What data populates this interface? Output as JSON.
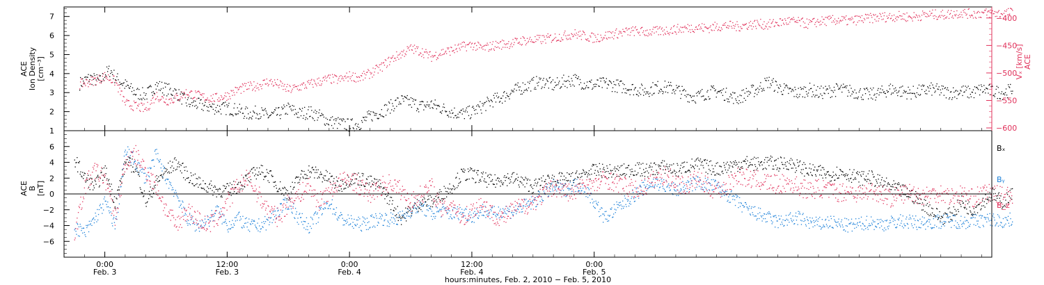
{
  "chart_data": [
    {
      "type": "scatter",
      "panel": "top",
      "ylabel_left": [
        "ACE",
        "Ion Density",
        "[cm⁻³]"
      ],
      "ylabel_right": [
        "ACE",
        "Vₓ [km/s]"
      ],
      "ylim_left": [
        1,
        7.5
      ],
      "ylim_right": [
        -605,
        -380
      ],
      "yticks_left": [
        1,
        2,
        3,
        4,
        5,
        6,
        7
      ],
      "yticks_right": [
        -600,
        -550,
        -500,
        -450,
        -400
      ],
      "colors": {
        "density": "#000000",
        "vx": "#e0305a"
      },
      "series": [
        {
          "key": "density",
          "axis": "left",
          "x": [
            -2.5,
            -1.5,
            -0.5,
            0,
            0.5,
            1,
            2,
            3,
            4,
            5,
            6,
            7,
            8,
            9,
            10,
            11,
            12,
            13,
            14,
            15,
            16,
            17,
            18,
            19,
            20,
            21,
            22,
            23,
            24,
            25,
            26,
            27,
            28,
            29,
            30,
            31,
            32,
            33,
            34,
            35,
            36,
            37,
            38,
            39,
            40,
            41,
            42,
            43,
            44,
            45,
            46,
            47,
            48,
            49,
            50,
            51,
            52,
            53,
            54,
            55,
            56,
            57,
            58,
            59,
            60,
            61,
            62,
            63,
            64,
            65,
            66,
            67,
            68,
            69,
            70,
            71,
            72,
            73,
            74,
            75,
            76,
            77,
            78,
            79,
            80,
            81,
            82,
            83,
            84,
            85,
            86,
            87,
            88,
            89
          ],
          "y": [
            3.5,
            3.8,
            3.6,
            4.0,
            4.2,
            3.8,
            3.4,
            3.0,
            2.9,
            3.4,
            3.2,
            3.0,
            2.5,
            2.4,
            2.3,
            2.2,
            2.2,
            2.1,
            1.9,
            2.0,
            1.8,
            1.9,
            2.2,
            1.9,
            2.0,
            1.8,
            1.5,
            1.4,
            1.3,
            1.4,
            1.8,
            2.0,
            2.3,
            2.6,
            2.5,
            2.3,
            2.4,
            2.2,
            2.0,
            1.9,
            2.0,
            2.3,
            2.6,
            2.8,
            3.1,
            3.3,
            3.5,
            3.6,
            3.4,
            3.6,
            3.7,
            3.5,
            3.4,
            3.5,
            3.4,
            3.3,
            3.2,
            3.1,
            3.3,
            3.3,
            3.2,
            2.9,
            2.8,
            3.0,
            3.1,
            2.9,
            2.7,
            3.0,
            3.2,
            3.6,
            3.3,
            3.1,
            3.0,
            3.2,
            3.0,
            3.1,
            3.2,
            3.1,
            3.0,
            2.9,
            3.0,
            3.2,
            3.1,
            3.0,
            3.1,
            3.2,
            3.1,
            3.0,
            3.1,
            3.0,
            3.2,
            3.1,
            3.0,
            3.2
          ]
        },
        {
          "key": "vx",
          "axis": "right",
          "x": [
            -2.5,
            -1.5,
            -0.5,
            0,
            0.5,
            1,
            2,
            3,
            4,
            5,
            6,
            7,
            8,
            9,
            10,
            11,
            12,
            13,
            14,
            15,
            16,
            17,
            18,
            19,
            20,
            21,
            22,
            23,
            24,
            25,
            26,
            27,
            28,
            29,
            30,
            31,
            32,
            33,
            34,
            35,
            36,
            37,
            38,
            39,
            40,
            41,
            42,
            43,
            44,
            45,
            46,
            47,
            48,
            49,
            50,
            51,
            52,
            53,
            54,
            55,
            56,
            57,
            58,
            59,
            60,
            61,
            62,
            63,
            64,
            65,
            66,
            67,
            68,
            69,
            70,
            71,
            72,
            73,
            74,
            75,
            76,
            77,
            78,
            79,
            80,
            81,
            82,
            83,
            84,
            85,
            86,
            87,
            88,
            89
          ],
          "y": [
            -520,
            -515,
            -510,
            -505,
            -510,
            -515,
            -555,
            -560,
            -565,
            -540,
            -550,
            -545,
            -535,
            -540,
            -545,
            -545,
            -540,
            -530,
            -525,
            -522,
            -515,
            -520,
            -530,
            -525,
            -520,
            -515,
            -510,
            -512,
            -505,
            -508,
            -500,
            -490,
            -475,
            -465,
            -455,
            -460,
            -470,
            -462,
            -458,
            -452,
            -448,
            -455,
            -450,
            -447,
            -445,
            -440,
            -440,
            -438,
            -435,
            -432,
            -428,
            -432,
            -436,
            -432,
            -428,
            -425,
            -423,
            -425,
            -424,
            -422,
            -420,
            -418,
            -416,
            -418,
            -415,
            -413,
            -415,
            -412,
            -410,
            -412,
            -408,
            -405,
            -407,
            -410,
            -406,
            -404,
            -403,
            -405,
            -402,
            -400,
            -398,
            -397,
            -396,
            -398,
            -395,
            -393,
            -394,
            -392,
            -390,
            -392,
            -391,
            -390,
            -392,
            -389
          ]
        }
      ]
    },
    {
      "type": "scatter",
      "panel": "bottom",
      "ylabel_left": [
        "ACE",
        "B",
        "[nT]"
      ],
      "ylim": [
        -8,
        8
      ],
      "yticks": [
        -6,
        -4,
        -2,
        0,
        2,
        4,
        6
      ],
      "legend": [
        {
          "label": "Bₓ",
          "color": "#000000"
        },
        {
          "label": "Bᵧ",
          "color": "#1a7fd8"
        },
        {
          "label": "B_z",
          "color": "#e0305a"
        }
      ],
      "series": [
        {
          "key": "bx",
          "x": [
            -3,
            -2,
            -1,
            0,
            1,
            2,
            3,
            4,
            5,
            6,
            7,
            8,
            9,
            10,
            11,
            12,
            13,
            14,
            15,
            16,
            17,
            18,
            19,
            20,
            21,
            22,
            23,
            24,
            25,
            26,
            27,
            28,
            29,
            30,
            31,
            32,
            33,
            34,
            35,
            36,
            37,
            38,
            39,
            40,
            41,
            42,
            43,
            44,
            45,
            46,
            47,
            48,
            49,
            50,
            51,
            52,
            53,
            54,
            55,
            56,
            57,
            58,
            59,
            60,
            61,
            62,
            63,
            64,
            65,
            66,
            67,
            68,
            69,
            70,
            71,
            72,
            73,
            74,
            75,
            76,
            77,
            78,
            79,
            80,
            81,
            82,
            83,
            84,
            85,
            86,
            87,
            88,
            89
          ],
          "y": [
            4.5,
            2.0,
            1.0,
            3.0,
            -1.0,
            4.0,
            3.5,
            -1.0,
            1.5,
            3.0,
            4.0,
            2.5,
            1.5,
            1.0,
            0.5,
            0.5,
            1.0,
            2.0,
            3.0,
            2.5,
            1.0,
            0.0,
            2.0,
            3.0,
            2.5,
            2.0,
            1.0,
            2.0,
            2.0,
            1.5,
            1.0,
            -1.0,
            -3.0,
            -2.0,
            -1.0,
            -1.0,
            0.0,
            1.0,
            2.5,
            2.5,
            2.0,
            1.5,
            2.0,
            2.0,
            1.5,
            1.0,
            1.5,
            2.0,
            1.8,
            2.0,
            2.5,
            3.0,
            3.0,
            2.8,
            3.0,
            3.2,
            3.0,
            3.3,
            3.5,
            3.0,
            3.5,
            3.8,
            3.5,
            3.2,
            3.5,
            3.8,
            4.0,
            3.8,
            4.0,
            3.8,
            4.0,
            3.5,
            3.0,
            2.8,
            2.5,
            2.8,
            2.5,
            2.0,
            2.2,
            1.5,
            1.0,
            0.5,
            0.0,
            -1.0,
            -2.0,
            -3.0,
            -2.5,
            -1.0,
            -2.0,
            -1.0,
            0.0,
            -1.0,
            0.0
          ]
        },
        {
          "key": "by",
          "x": [
            -3,
            -2,
            -1,
            0,
            1,
            2,
            3,
            4,
            5,
            6,
            7,
            8,
            9,
            10,
            11,
            12,
            13,
            14,
            15,
            16,
            17,
            18,
            19,
            20,
            21,
            22,
            23,
            24,
            25,
            26,
            27,
            28,
            29,
            30,
            31,
            32,
            33,
            34,
            35,
            36,
            37,
            38,
            39,
            40,
            41,
            42,
            43,
            44,
            45,
            46,
            47,
            48,
            49,
            50,
            51,
            52,
            53,
            54,
            55,
            56,
            57,
            58,
            59,
            60,
            61,
            62,
            63,
            64,
            65,
            66,
            67,
            68,
            69,
            70,
            71,
            72,
            73,
            74,
            75,
            76,
            77,
            78,
            79,
            80,
            81,
            82,
            83,
            84,
            85,
            86,
            87,
            88,
            89
          ],
          "y": [
            -4.0,
            -5.0,
            -3.0,
            -1.0,
            -4.0,
            5.5,
            4.0,
            2.0,
            5.0,
            2.0,
            0.0,
            -3.0,
            -4.0,
            -3.5,
            -2.0,
            -4.0,
            -3.0,
            -4.0,
            -4.0,
            -3.5,
            -2.0,
            -1.0,
            -3.0,
            -4.0,
            -2.5,
            -1.0,
            -3.0,
            -3.5,
            -3.8,
            -3.5,
            -3.0,
            -3.2,
            -3.0,
            -2.0,
            -1.5,
            -2.5,
            -2.0,
            -2.5,
            -2.2,
            -2.8,
            -2.0,
            -2.5,
            -2.0,
            -2.2,
            -1.5,
            -1.0,
            0.0,
            1.0,
            0.5,
            1.2,
            0.8,
            -1.0,
            -3.0,
            -2.0,
            -1.0,
            0.0,
            1.0,
            1.5,
            1.0,
            0.5,
            1.0,
            1.5,
            1.2,
            1.0,
            0.0,
            -1.0,
            -2.0,
            -2.5,
            -3.0,
            -3.5,
            -3.2,
            -3.0,
            -3.5,
            -3.8,
            -3.5,
            -3.8,
            -4.0,
            -3.8,
            -3.5,
            -3.8,
            -3.6,
            -3.4,
            -3.5,
            -3.6,
            -3.5,
            -3.4,
            -3.3,
            -3.5,
            -3.4,
            -3.3,
            -3.2,
            -3.4,
            -3.2
          ]
        },
        {
          "key": "bz",
          "x": [
            -3,
            -2,
            -1,
            0,
            1,
            2,
            3,
            4,
            5,
            6,
            7,
            8,
            9,
            10,
            11,
            12,
            13,
            14,
            15,
            16,
            17,
            18,
            19,
            20,
            21,
            22,
            23,
            24,
            25,
            26,
            27,
            28,
            29,
            30,
            31,
            32,
            33,
            34,
            35,
            36,
            37,
            38,
            39,
            40,
            41,
            42,
            43,
            44,
            45,
            46,
            47,
            48,
            49,
            50,
            51,
            52,
            53,
            54,
            55,
            56,
            57,
            58,
            59,
            60,
            61,
            62,
            63,
            64,
            65,
            66,
            67,
            68,
            69,
            70,
            71,
            72,
            73,
            74,
            75,
            76,
            77,
            78,
            79,
            80,
            81,
            82,
            83,
            84,
            85,
            86,
            87,
            88,
            89
          ],
          "y": [
            -5.0,
            1.0,
            3.0,
            2.0,
            -3.0,
            4.0,
            5.0,
            3.0,
            1.0,
            -2.0,
            -4.0,
            -2.0,
            -3.0,
            -4.0,
            -3.0,
            -1.0,
            1.0,
            2.0,
            0.0,
            -2.0,
            -3.0,
            -1.0,
            0.0,
            1.0,
            -1.0,
            0.5,
            1.5,
            2.0,
            1.0,
            0.0,
            1.0,
            1.5,
            0.5,
            -1.0,
            0.0,
            1.0,
            -2.0,
            -1.0,
            -3.0,
            -2.0,
            -1.0,
            -2.5,
            -3.0,
            -2.0,
            -1.5,
            -1.0,
            0.0,
            1.0,
            0.5,
            0.0,
            1.5,
            1.0,
            2.0,
            1.5,
            1.0,
            0.5,
            1.0,
            2.0,
            2.5,
            1.5,
            1.0,
            2.0,
            1.0,
            0.5,
            1.0,
            2.5,
            2.0,
            1.8,
            1.5,
            1.2,
            1.5,
            1.0,
            0.5,
            0.8,
            0.5,
            0.2,
            0.5,
            0.0,
            0.5,
            0.2,
            -0.5,
            0.0,
            0.3,
            -0.2,
            0.0,
            0.2,
            -0.3,
            0.0,
            -0.5,
            0.0,
            0.2,
            -0.3,
            0.0
          ]
        }
      ]
    }
  ],
  "x_axis": {
    "range_hours": [
      -4,
      87
    ],
    "ticks": [
      {
        "hour": 0,
        "label": "0:00",
        "day": "Feb. 3"
      },
      {
        "hour": 12,
        "label": "12:00",
        "day": "Feb. 3"
      },
      {
        "hour": 24,
        "label": "0:00",
        "day": "Feb. 4"
      },
      {
        "hour": 36,
        "label": "12:00",
        "day": "Feb. 4"
      },
      {
        "hour": 48,
        "label": "0:00",
        "day": "Feb. 5"
      }
    ],
    "xlabel": "hours:minutes, Feb. 2, 2010 − Feb. 5, 2010"
  }
}
